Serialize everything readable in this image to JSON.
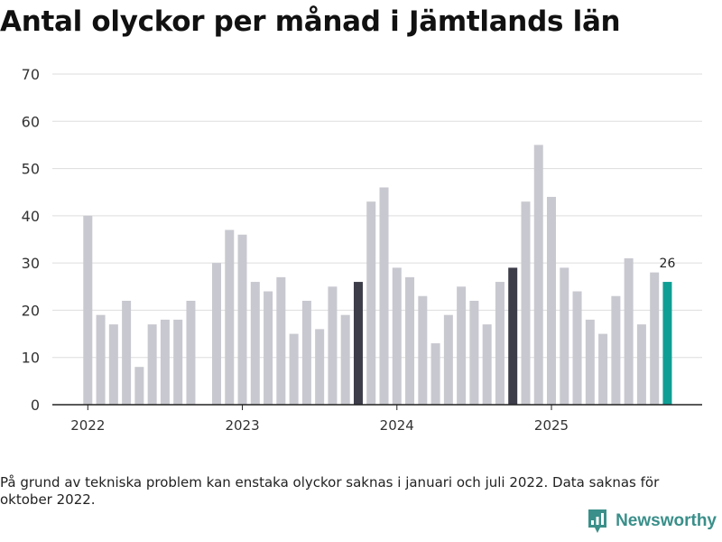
{
  "title": "Antal olyckor per månad i Jämtlands län",
  "footnote": "På grund av tekniska problem kan enstaka olyckor saknas i januari och juli 2022. Data saknas för oktober 2022.",
  "brand": "Newsworthy",
  "colors": {
    "default": "#c8c8d0",
    "october": "#3d3d4a",
    "latest": "#0f9e94",
    "grid": "#dddddd",
    "axis": "#222222"
  },
  "chart_data": {
    "type": "bar",
    "title": "Antal olyckor per månad i Jämtlands län",
    "xlabel": "",
    "ylabel": "",
    "ylim": [
      0,
      70
    ],
    "yticks": [
      "0",
      "10",
      "20",
      "30",
      "40",
      "50",
      "60",
      "70"
    ],
    "xticks": [
      {
        "label": "2022",
        "index": 0
      },
      {
        "label": "2023",
        "index": 12
      },
      {
        "label": "2024",
        "index": 24
      },
      {
        "label": "2025",
        "index": 36
      }
    ],
    "highlight_label": "26",
    "categories": [
      "2022-01",
      "2022-02",
      "2022-03",
      "2022-04",
      "2022-05",
      "2022-06",
      "2022-07",
      "2022-08",
      "2022-09",
      "2022-10",
      "2022-11",
      "2022-12",
      "2023-01",
      "2023-02",
      "2023-03",
      "2023-04",
      "2023-05",
      "2023-06",
      "2023-07",
      "2023-08",
      "2023-09",
      "2023-10",
      "2023-11",
      "2023-12",
      "2024-01",
      "2024-02",
      "2024-03",
      "2024-04",
      "2024-05",
      "2024-06",
      "2024-07",
      "2024-08",
      "2024-09",
      "2024-10",
      "2024-11",
      "2024-12",
      "2025-01",
      "2025-02",
      "2025-03",
      "2025-04",
      "2025-05",
      "2025-06",
      "2025-07",
      "2025-08",
      "2025-09",
      "2025-10"
    ],
    "values": [
      40,
      19,
      17,
      22,
      8,
      17,
      18,
      18,
      22,
      null,
      30,
      37,
      36,
      26,
      24,
      27,
      15,
      22,
      16,
      25,
      19,
      26,
      43,
      46,
      29,
      27,
      23,
      13,
      19,
      25,
      22,
      17,
      26,
      29,
      43,
      55,
      44,
      29,
      24,
      18,
      15,
      23,
      31,
      17,
      28,
      26
    ],
    "series_color_keys": [
      "default",
      "default",
      "default",
      "default",
      "default",
      "default",
      "default",
      "default",
      "default",
      "default",
      "default",
      "default",
      "default",
      "default",
      "default",
      "default",
      "default",
      "default",
      "default",
      "default",
      "default",
      "october",
      "default",
      "default",
      "default",
      "default",
      "default",
      "default",
      "default",
      "default",
      "default",
      "default",
      "default",
      "october",
      "default",
      "default",
      "default",
      "default",
      "default",
      "default",
      "default",
      "default",
      "default",
      "default",
      "default",
      "latest"
    ]
  }
}
